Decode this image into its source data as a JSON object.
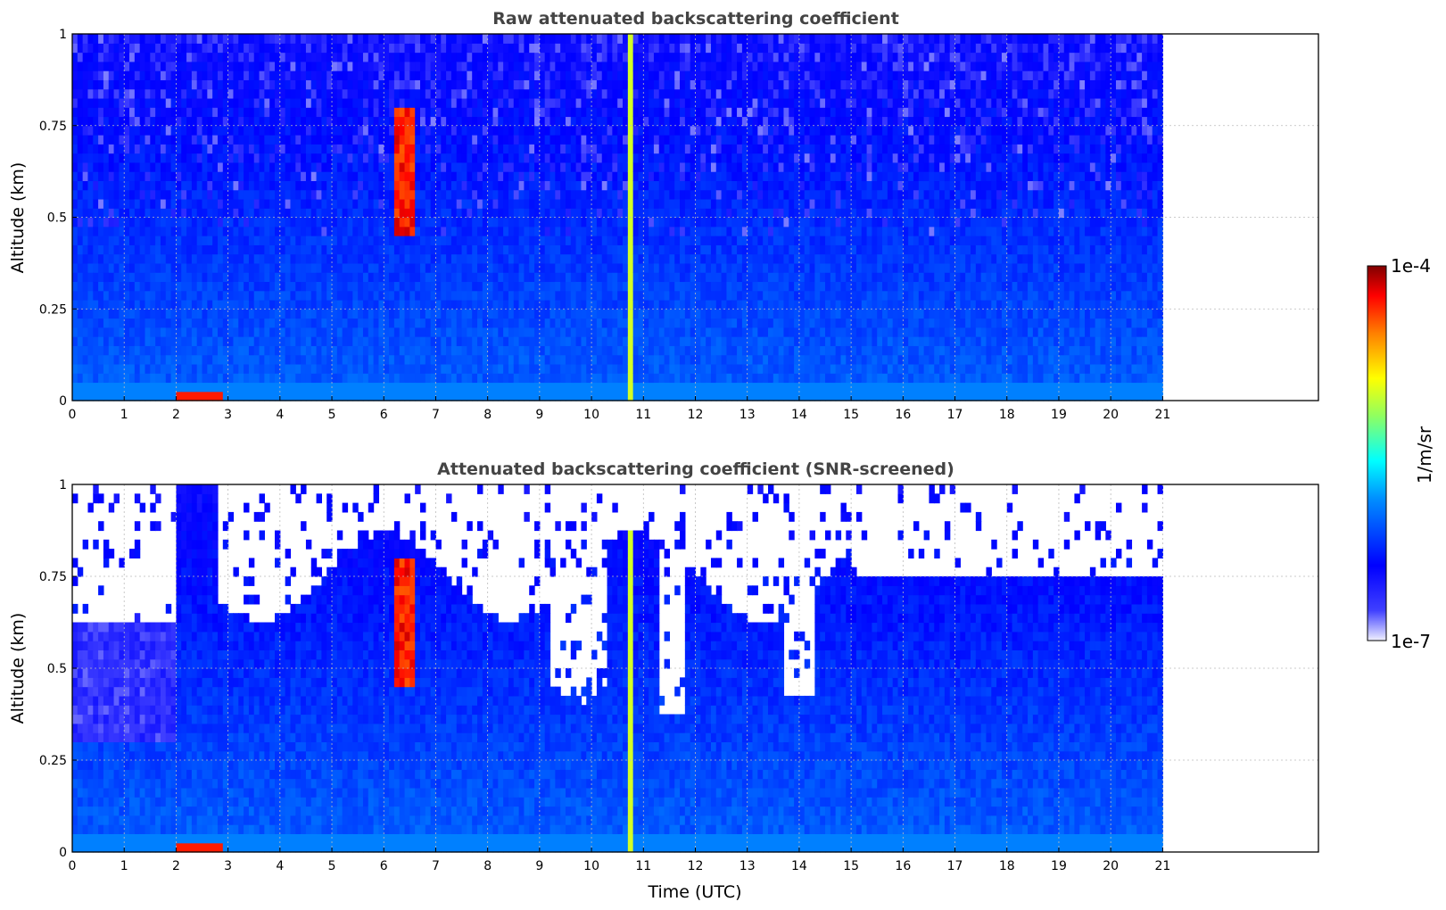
{
  "chart_data": [
    {
      "type": "heatmap",
      "title": "Raw attenuated backscattering coefficient",
      "xlabel": "",
      "ylabel": "Altitude (km)",
      "xlim": [
        0,
        24
      ],
      "ylim": [
        0,
        1
      ],
      "xticks": [
        "0",
        "1",
        "2",
        "3",
        "4",
        "5",
        "6",
        "7",
        "8",
        "9",
        "10",
        "11",
        "12",
        "13",
        "14",
        "15",
        "16",
        "17",
        "18",
        "19",
        "20",
        "21"
      ],
      "yticks": [
        "0",
        "0.25",
        "0.5",
        "0.75",
        "1"
      ],
      "data_extent_x": [
        0,
        21
      ],
      "grid": true,
      "screened": false
    },
    {
      "type": "heatmap",
      "title": "Attenuated backscattering coefficient (SNR-screened)",
      "xlabel": "Time (UTC)",
      "ylabel": "Altitude (km)",
      "xlim": [
        0,
        24
      ],
      "ylim": [
        0,
        1
      ],
      "xticks": [
        "0",
        "1",
        "2",
        "3",
        "4",
        "5",
        "6",
        "7",
        "8",
        "9",
        "10",
        "11",
        "12",
        "13",
        "14",
        "15",
        "16",
        "17",
        "18",
        "19",
        "20",
        "21"
      ],
      "yticks": [
        "0",
        "0.25",
        "0.5",
        "0.75",
        "1"
      ],
      "data_extent_x": [
        0,
        21
      ],
      "grid": true,
      "screened": true
    }
  ],
  "colorbar": {
    "label": "1/m/sr",
    "max_label": "1e-4",
    "min_label": "1e-7",
    "scale": "log",
    "range": [
      1e-07,
      0.0001
    ],
    "colormap": [
      "#f0f0ff",
      "#0000ff",
      "#0080ff",
      "#00ffff",
      "#80ff80",
      "#ffff00",
      "#ff8000",
      "#ff0000",
      "#800000"
    ]
  }
}
